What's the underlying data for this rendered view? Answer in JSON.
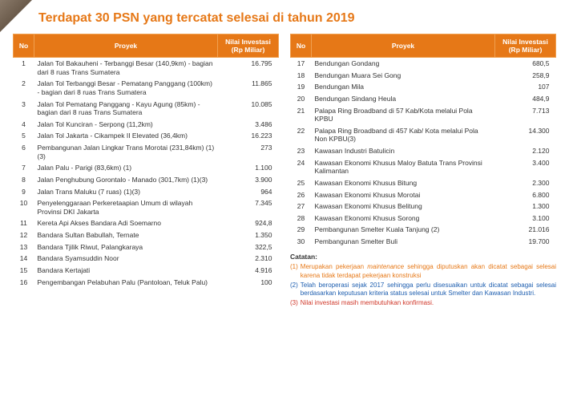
{
  "title": "Terdapat 30 PSN yang tercatat selesai di tahun 2019",
  "headers": {
    "no": "No",
    "proyek": "Proyek",
    "nilai": "Nilai Investasi (Rp Miliar)"
  },
  "left_rows": [
    {
      "no": "1",
      "proyek": "Jalan Tol Bakauheni - Terbanggi Besar (140,9km) - bagian dari 8 ruas Trans Sumatera",
      "val": "16.795"
    },
    {
      "no": "2",
      "proyek": "Jalan Tol Terbanggi Besar - Pematang Panggang (100km) - bagian dari 8 ruas Trans Sumatera",
      "val": "11.865"
    },
    {
      "no": "3",
      "proyek": "Jalan Tol Pematang Panggang - Kayu Agung (85km) - bagian dari 8 ruas Trans Sumatera",
      "val": "10.085"
    },
    {
      "no": "4",
      "proyek": "Jalan Tol Kunciran - Serpong (11,2km)",
      "val": "3.486"
    },
    {
      "no": "5",
      "proyek": "Jalan Tol Jakarta - Cikampek II Elevated (36,4km)",
      "val": "16.223"
    },
    {
      "no": "6",
      "proyek": "Pembangunan Jalan Lingkar Trans Morotai (231,84km) (1)(3)",
      "val": "273"
    },
    {
      "no": "7",
      "proyek": "Jalan Palu - Parigi (83,6km) (1)",
      "val": "1.100"
    },
    {
      "no": "8",
      "proyek": "Jalan Penghubung Gorontalo - Manado (301,7km) (1)(3)",
      "val": "3.900"
    },
    {
      "no": "9",
      "proyek": "Jalan Trans Maluku (7 ruas) (1)(3)",
      "val": "964"
    },
    {
      "no": "10",
      "proyek": "Penyelenggaraan Perkeretaapian Umum di wilayah Provinsi DKI Jakarta",
      "val": "7.345"
    },
    {
      "no": "11",
      "proyek": "Kereta Api Akses Bandara Adi Soemarno",
      "val": "924,8"
    },
    {
      "no": "12",
      "proyek": "Bandara Sultan Babullah, Ternate",
      "val": "1.350"
    },
    {
      "no": "13",
      "proyek": "Bandara Tjilik Riwut, Palangkaraya",
      "val": "322,5"
    },
    {
      "no": "14",
      "proyek": "Bandara Syamsuddin Noor",
      "val": "2.310"
    },
    {
      "no": "15",
      "proyek": "Bandara Kertajati",
      "val": "4.916"
    },
    {
      "no": "16",
      "proyek": "Pengembangan Pelabuhan Palu (Pantoloan, Teluk Palu)",
      "val": "100"
    }
  ],
  "right_rows": [
    {
      "no": "17",
      "proyek": "Bendungan Gondang",
      "val": "680,5"
    },
    {
      "no": "18",
      "proyek": "Bendungan Muara Sei Gong",
      "val": "258,9"
    },
    {
      "no": "19",
      "proyek": "Bendungan Mila",
      "val": "107"
    },
    {
      "no": "20",
      "proyek": "Bendungan Sindang Heula",
      "val": "484,9"
    },
    {
      "no": "21",
      "proyek": "Palapa Ring Broadband di 57 Kab/Kota melalui Pola KPBU",
      "val": "7.713"
    },
    {
      "no": "22",
      "proyek": "Palapa Ring Broadband di 457 Kab/ Kota melalui Pola Non KPBU(3)",
      "val": "14.300"
    },
    {
      "no": "23",
      "proyek": "Kawasan Industri Batulicin",
      "val": "2.120"
    },
    {
      "no": "24",
      "proyek": "Kawasan Ekonomi Khusus Maloy Batuta Trans Provinsi Kalimantan",
      "val": "3.400"
    },
    {
      "no": "25",
      "proyek": "Kawasan Ekonomi Khusus Bitung",
      "val": "2.300"
    },
    {
      "no": "26",
      "proyek": "Kawasan Ekonomi Khusus Morotai",
      "val": "6.800"
    },
    {
      "no": "27",
      "proyek": "Kawasan Ekonomi Khusus Belitung",
      "val": "1.300"
    },
    {
      "no": "28",
      "proyek": "Kawasan Ekonomi Khusus Sorong",
      "val": "3.100"
    },
    {
      "no": "29",
      "proyek": "Pembangunan Smelter Kuala Tanjung (2)",
      "val": "21.016"
    },
    {
      "no": "30",
      "proyek": "Pembangunan Smelter Buli",
      "val": "19.700"
    }
  ],
  "notes_title": "Catatan:",
  "notes": [
    {
      "bullet": "(1)",
      "cls": "orange",
      "text": "Merupakan pekerjaan <em class=\"i\">maintenance</em> sehingga diputuskan akan dicatat sebagai selesai karena tidak terdapat pekerjaan konstruksi"
    },
    {
      "bullet": "(2)",
      "cls": "blue",
      "text": "Telah beroperasi sejak 2017 sehingga perlu disesuaikan untuk dicatat sebagai selesai berdasarkan keputusan kriteria status selesai untuk Smelter dan Kawasan Industri."
    },
    {
      "bullet": "(3)",
      "cls": "red",
      "text": "Nilai investasi masih membutuhkan konfirmasi."
    }
  ]
}
